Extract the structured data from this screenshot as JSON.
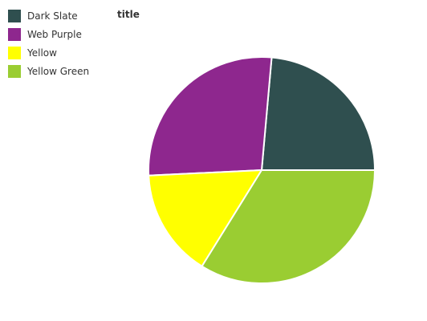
{
  "chart_data": {
    "type": "pie",
    "title": "title",
    "legend_position": "top-left",
    "categories": [
      "Dark Slate",
      "Web Purple",
      "Yellow",
      "Yellow Green"
    ],
    "values": [
      23,
      26.5,
      15,
      33
    ],
    "colors": [
      "#2f4f4f",
      "#8e278e",
      "#ffff00",
      "#9acd32"
    ]
  }
}
